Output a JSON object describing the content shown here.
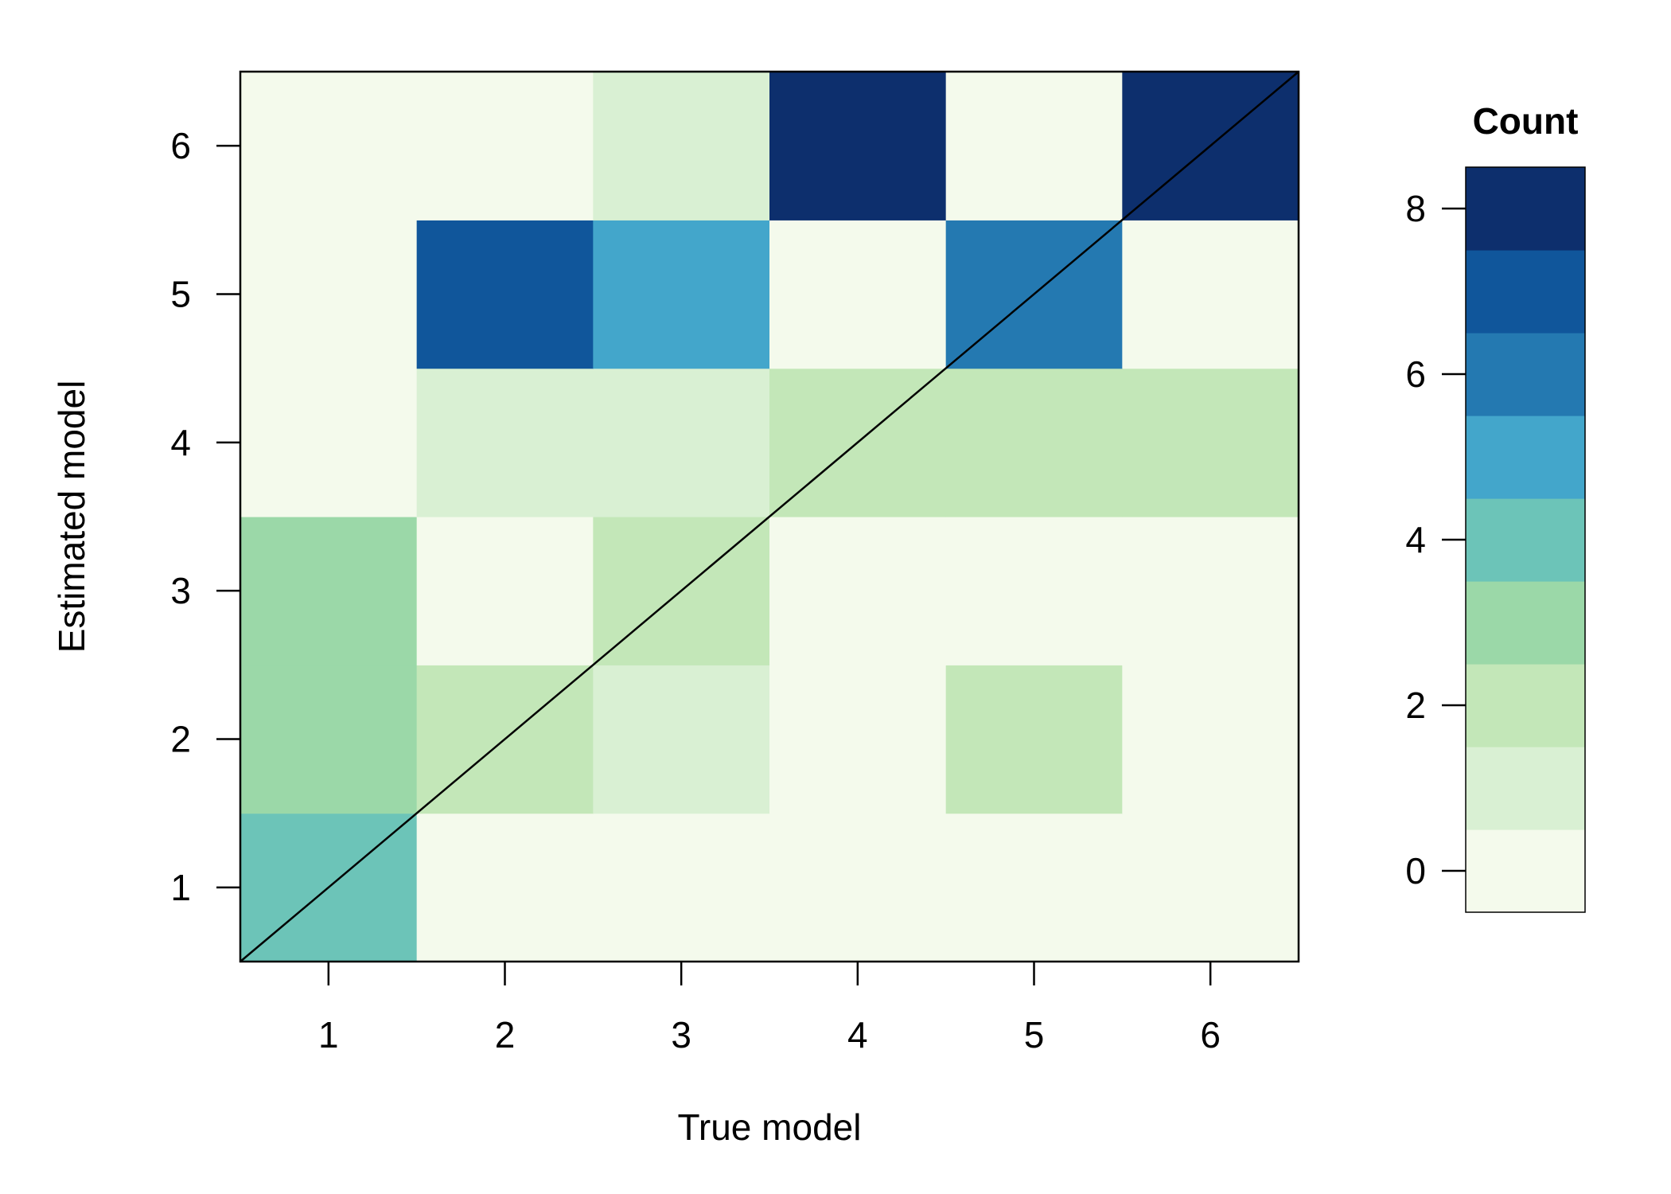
{
  "chart_data": {
    "type": "heatmap",
    "title": "",
    "xlabel": "True model",
    "ylabel": "Estimated model",
    "x_categories": [
      "1",
      "2",
      "3",
      "4",
      "5",
      "6"
    ],
    "y_categories": [
      "1",
      "2",
      "3",
      "4",
      "5",
      "6"
    ],
    "values": [
      [
        4,
        0,
        0,
        0,
        0,
        0
      ],
      [
        3,
        2,
        1,
        0,
        2,
        0
      ],
      [
        3,
        0,
        2,
        0,
        0,
        0
      ],
      [
        0,
        1,
        1,
        2,
        2,
        2
      ],
      [
        0,
        7,
        5,
        0,
        6,
        0
      ],
      [
        0,
        0,
        1,
        8,
        0,
        8
      ]
    ],
    "values_orientation": "rows = estimated model 1..6 (bottom to top), columns = true model 1..6",
    "diagonal_line": true,
    "legend": {
      "title": "Count",
      "placement": "right",
      "ticks": [
        "0",
        "2",
        "4",
        "6",
        "8"
      ],
      "levels": [
        0,
        1,
        2,
        3,
        4,
        5,
        6,
        7,
        8
      ],
      "colors": [
        "#f4faec",
        "#d9f0d3",
        "#c3e7b8",
        "#9bd8a8",
        "#6cc4b8",
        "#43a6cb",
        "#2479b1",
        "#10569b",
        "#0d2f6d"
      ]
    }
  }
}
